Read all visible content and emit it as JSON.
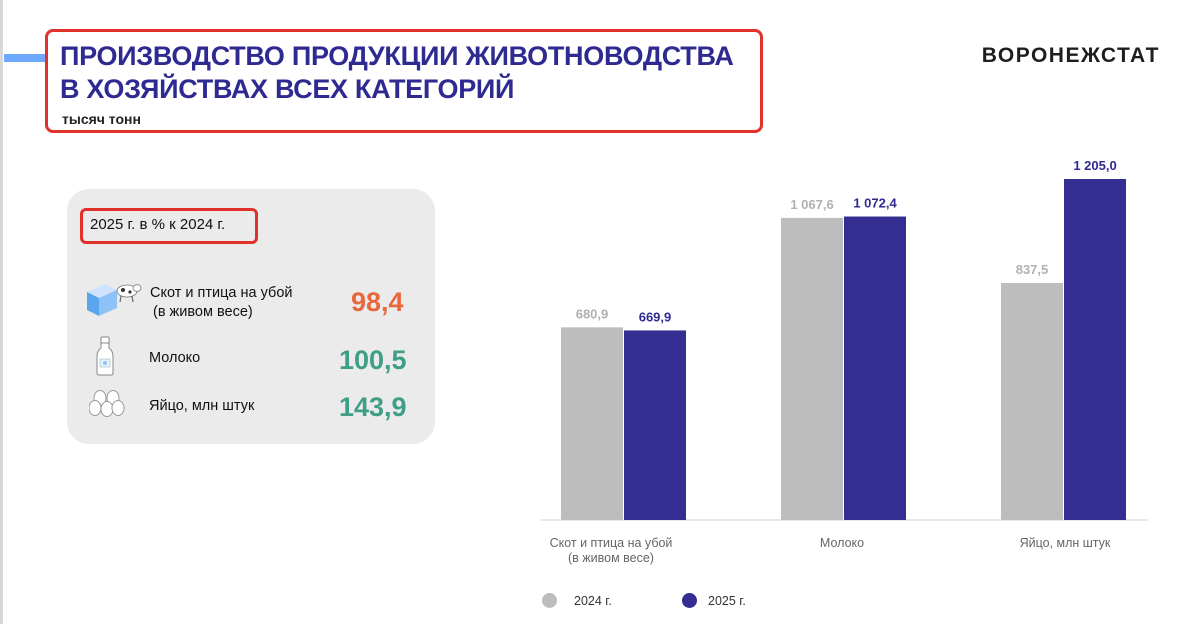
{
  "header": {
    "title_line1": "ПРОИЗВОДСТВО ПРОДУКЦИИ ЖИВОТНОВОДСТВА",
    "title_line2": "В ХОЗЯЙСТВАХ ВСЕХ КАТЕГОРИЙ",
    "units": "тысяч тонн",
    "brand": "ВОРОНЕЖСТАТ"
  },
  "summary": {
    "heading": "2025 г. в % к 2024 г.",
    "rows": [
      {
        "label_line1": "Скот и птица на убой",
        "label_line2": "(в живом весе)",
        "value": "98,4",
        "icon": "cow-milk-carton-icon",
        "color": "#e8673c"
      },
      {
        "label_line1": "Молоко",
        "label_line2": "",
        "value": "100,5",
        "icon": "milk-bottle-icon",
        "color": "#3f9f86"
      },
      {
        "label_line1": "Яйцо, млн штук",
        "label_line2": "",
        "value": "143,9",
        "icon": "eggs-icon",
        "color": "#3f9f86"
      }
    ]
  },
  "chart_data": {
    "type": "bar",
    "title": "",
    "xlabel": "",
    "ylabel": "",
    "ylim": [
      0,
      1250
    ],
    "grid": false,
    "legend_position": "bottom",
    "categories": [
      {
        "line1": "Скот и птица на убой",
        "line2": "(в живом весе)"
      },
      {
        "line1": "Молоко",
        "line2": ""
      },
      {
        "line1": "Яйцо, млн штук",
        "line2": ""
      }
    ],
    "series": [
      {
        "name": "2024 г.",
        "color": "#bdbdbd",
        "label_color": "#b0b0b0",
        "values": [
          680.9,
          1067.6,
          837.5
        ],
        "labels": [
          "680,9",
          "1 067,6",
          "837,5"
        ]
      },
      {
        "name": "2025 г.",
        "color": "#352e92",
        "label_color": "#2e2a91",
        "values": [
          669.9,
          1072.4,
          1205.0
        ],
        "labels": [
          "669,9",
          "1 072,4",
          "1 205,0"
        ]
      }
    ]
  }
}
